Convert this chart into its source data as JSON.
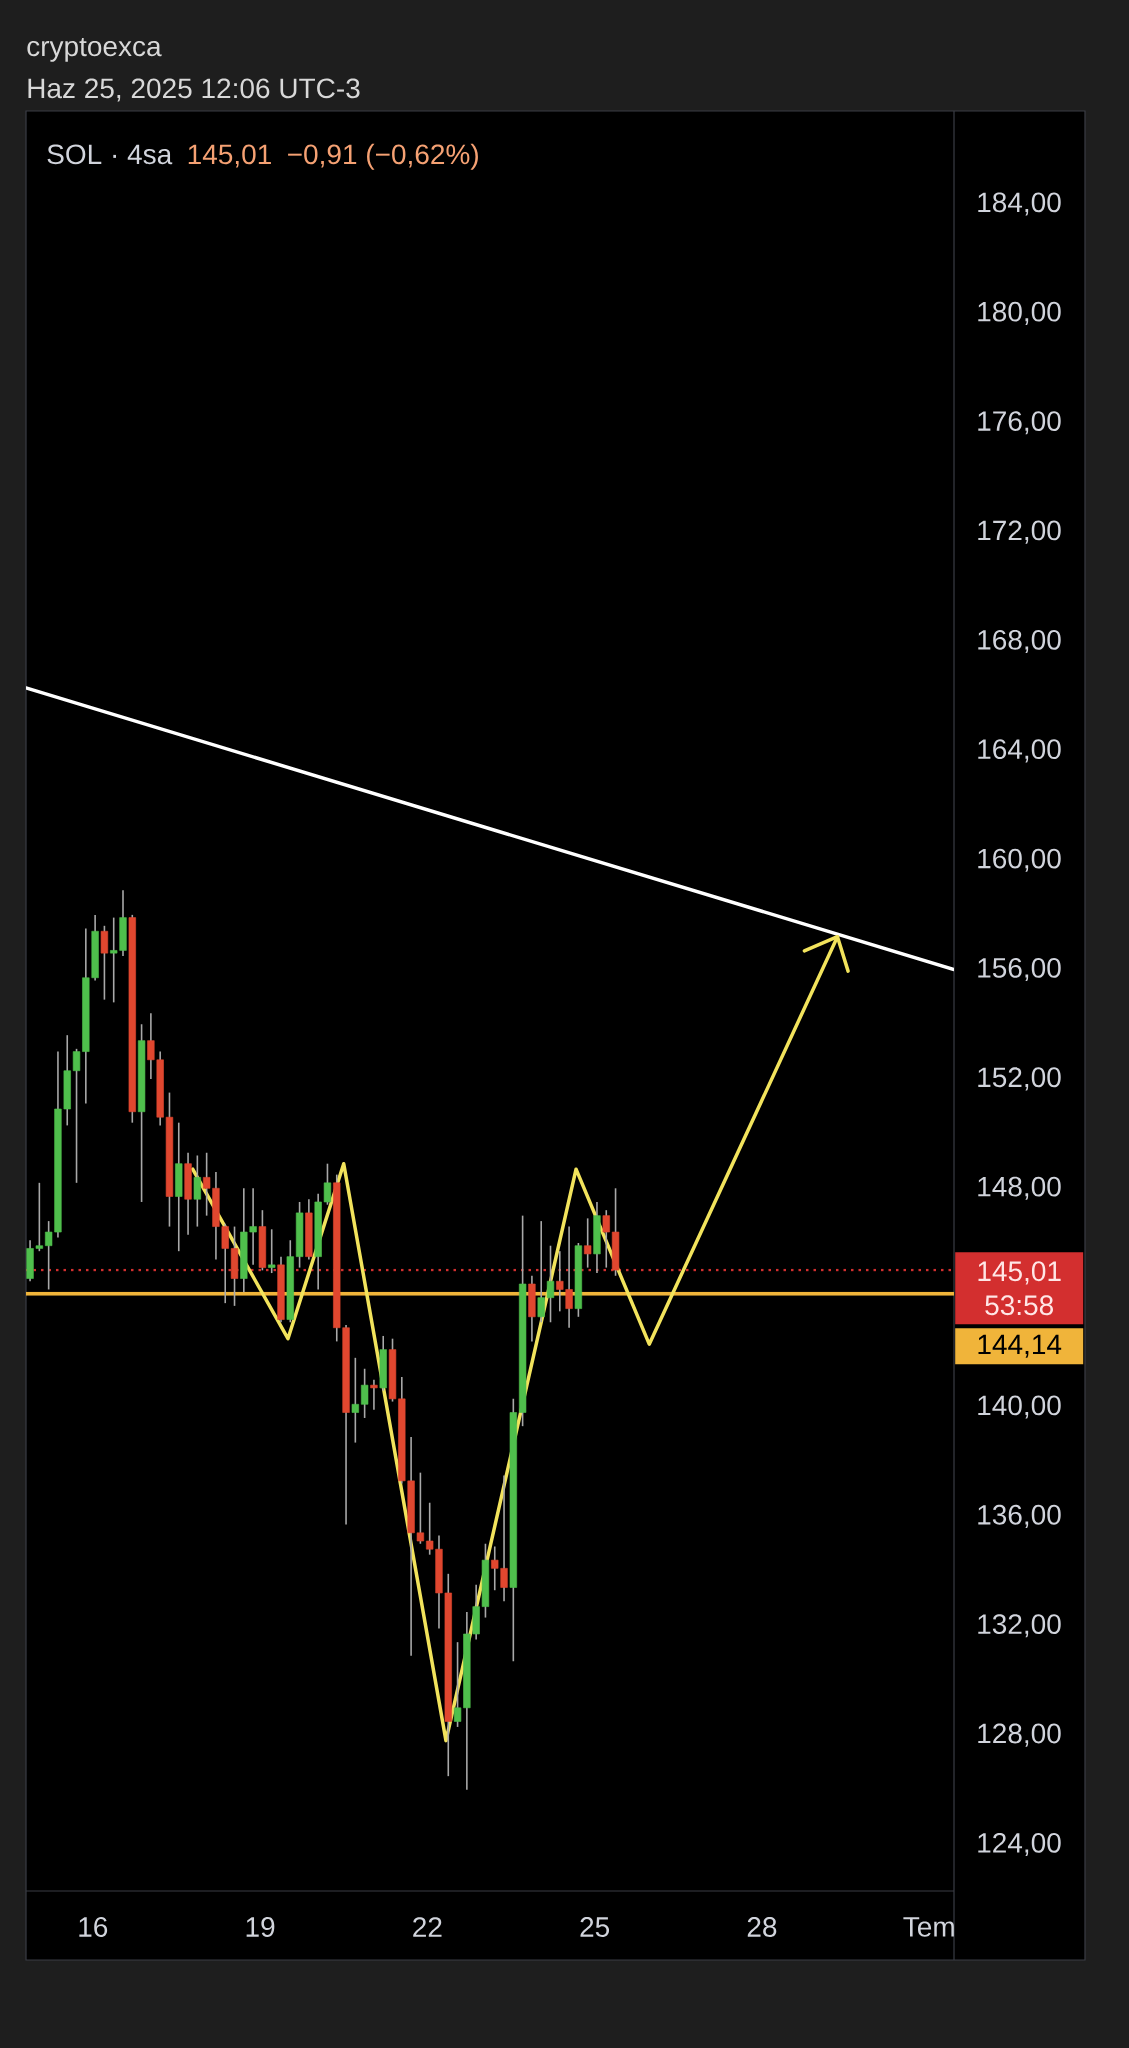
{
  "chart_data": {
    "type": "candlestick",
    "title": "cryptoexca",
    "subtitle": "Haz 25, 2025 12:06 UTC-3",
    "annotations": [
      "SOL · 4sa",
      "145,01",
      "−0,91 (−0,62%)",
      "53:58"
    ],
    "x": [
      "2025-06-14T21:00",
      "2025-06-15T01:00",
      "2025-06-15T05:00",
      "2025-06-15T09:00",
      "2025-06-15T13:00",
      "2025-06-15T17:00",
      "2025-06-15T21:00",
      "2025-06-16T01:00",
      "2025-06-16T05:00",
      "2025-06-16T09:00",
      "2025-06-16T13:00",
      "2025-06-16T17:00",
      "2025-06-16T21:00",
      "2025-06-17T01:00",
      "2025-06-17T05:00",
      "2025-06-17T09:00",
      "2025-06-17T13:00",
      "2025-06-17T17:00",
      "2025-06-17T21:00",
      "2025-06-18T01:00",
      "2025-06-18T05:00",
      "2025-06-18T09:00",
      "2025-06-18T13:00",
      "2025-06-18T17:00",
      "2025-06-18T21:00",
      "2025-06-19T01:00",
      "2025-06-19T05:00",
      "2025-06-19T09:00",
      "2025-06-19T13:00",
      "2025-06-19T17:00",
      "2025-06-19T21:00",
      "2025-06-20T01:00",
      "2025-06-20T05:00",
      "2025-06-20T09:00",
      "2025-06-20T13:00",
      "2025-06-20T17:00",
      "2025-06-20T21:00",
      "2025-06-21T01:00",
      "2025-06-21T05:00",
      "2025-06-21T09:00",
      "2025-06-21T13:00",
      "2025-06-21T17:00",
      "2025-06-21T21:00",
      "2025-06-22T01:00",
      "2025-06-22T05:00",
      "2025-06-22T09:00",
      "2025-06-22T13:00",
      "2025-06-22T17:00",
      "2025-06-22T21:00",
      "2025-06-23T01:00",
      "2025-06-23T05:00",
      "2025-06-23T09:00",
      "2025-06-23T13:00",
      "2025-06-23T17:00",
      "2025-06-23T21:00",
      "2025-06-24T01:00",
      "2025-06-24T05:00",
      "2025-06-24T09:00",
      "2025-06-24T13:00",
      "2025-06-24T17:00",
      "2025-06-24T21:00",
      "2025-06-25T01:00",
      "2025-06-25T05:00",
      "2025-06-25T09:00"
    ],
    "ohlc": [
      [
        144.7,
        146.1,
        144.6,
        145.8
      ],
      [
        145.8,
        148.2,
        145.7,
        145.9
      ],
      [
        145.9,
        146.8,
        144.3,
        146.4
      ],
      [
        146.4,
        153.0,
        146.2,
        150.9
      ],
      [
        150.9,
        153.6,
        150.3,
        152.3
      ],
      [
        152.3,
        153.1,
        148.2,
        153.0
      ],
      [
        153.0,
        157.5,
        151.1,
        155.7
      ],
      [
        155.7,
        158.0,
        155.6,
        157.4
      ],
      [
        157.4,
        157.6,
        154.9,
        156.6
      ],
      [
        156.6,
        157.9,
        154.8,
        156.7
      ],
      [
        156.7,
        158.9,
        156.5,
        157.9
      ],
      [
        157.9,
        158.0,
        150.4,
        150.8
      ],
      [
        150.8,
        154.0,
        147.5,
        153.4
      ],
      [
        153.4,
        154.4,
        152.0,
        152.7
      ],
      [
        152.7,
        153.0,
        150.3,
        150.6
      ],
      [
        150.6,
        151.5,
        146.6,
        147.7
      ],
      [
        147.7,
        150.4,
        145.7,
        148.9
      ],
      [
        148.9,
        149.3,
        146.3,
        147.6
      ],
      [
        147.6,
        149.2,
        146.6,
        148.4
      ],
      [
        148.4,
        149.3,
        147.0,
        148.0
      ],
      [
        148.0,
        148.6,
        145.4,
        146.6
      ],
      [
        146.6,
        146.7,
        143.8,
        145.8
      ],
      [
        145.8,
        146.6,
        143.7,
        144.7
      ],
      [
        144.7,
        148.0,
        144.2,
        146.4
      ],
      [
        146.4,
        148.0,
        145.2,
        146.6
      ],
      [
        146.6,
        147.2,
        145.0,
        145.1
      ],
      [
        145.1,
        146.5,
        144.9,
        145.2
      ],
      [
        145.2,
        145.5,
        143.1,
        143.2
      ],
      [
        143.2,
        146.1,
        143.1,
        145.5
      ],
      [
        145.5,
        147.5,
        145.1,
        147.1
      ],
      [
        147.1,
        147.6,
        145.4,
        145.5
      ],
      [
        145.5,
        147.8,
        144.3,
        147.5
      ],
      [
        147.5,
        148.9,
        147.4,
        148.2
      ],
      [
        148.2,
        148.5,
        142.4,
        142.9
      ],
      [
        142.9,
        143.0,
        135.7,
        139.8
      ],
      [
        139.8,
        141.8,
        138.7,
        140.1
      ],
      [
        140.1,
        141.4,
        139.6,
        140.8
      ],
      [
        140.8,
        141.0,
        139.9,
        140.7
      ],
      [
        140.7,
        142.6,
        140.6,
        142.1
      ],
      [
        142.1,
        142.5,
        140.2,
        140.3
      ],
      [
        140.3,
        141.1,
        137.2,
        137.3
      ],
      [
        137.3,
        138.9,
        130.9,
        135.4
      ],
      [
        135.4,
        137.6,
        135.0,
        135.1
      ],
      [
        135.1,
        136.5,
        134.6,
        134.8
      ],
      [
        134.8,
        135.3,
        131.9,
        133.2
      ],
      [
        133.2,
        133.9,
        126.5,
        128.5
      ],
      [
        128.5,
        131.4,
        128.3,
        129.0
      ],
      [
        129.0,
        132.5,
        126.0,
        131.7
      ],
      [
        131.7,
        133.5,
        131.5,
        132.7
      ],
      [
        132.7,
        135.0,
        132.3,
        134.4
      ],
      [
        134.4,
        134.9,
        133.3,
        134.1
      ],
      [
        134.1,
        137.5,
        132.9,
        133.4
      ],
      [
        133.4,
        140.3,
        130.7,
        139.8
      ],
      [
        139.8,
        147.0,
        139.3,
        144.5
      ],
      [
        144.5,
        144.8,
        142.4,
        143.3
      ],
      [
        143.3,
        146.8,
        143.1,
        144.0
      ],
      [
        144.0,
        145.9,
        143.1,
        144.6
      ],
      [
        144.6,
        145.7,
        143.5,
        144.3
      ],
      [
        144.3,
        146.6,
        142.9,
        143.6
      ],
      [
        143.6,
        146.0,
        143.3,
        145.9
      ],
      [
        145.9,
        146.9,
        145.1,
        145.6
      ],
      [
        145.6,
        147.5,
        144.9,
        147.0
      ],
      [
        147.0,
        147.2,
        145.1,
        146.4
      ],
      [
        146.4,
        148.0,
        144.8,
        145.01
      ]
    ],
    "colors": [
      "#4fbf4c",
      "#4fbf4c",
      "#4fbf4c",
      "#4fbf4c",
      "#4fbf4c",
      "#4fbf4c",
      "#4fbf4c",
      "#4fbf4c",
      "#e0472f",
      "#4fbf4c",
      "#4fbf4c",
      "#e0472f",
      "#4fbf4c",
      "#e0472f",
      "#e0472f",
      "#e0472f",
      "#4fbf4c",
      "#e0472f",
      "#4fbf4c",
      "#e0472f",
      "#e0472f",
      "#e0472f",
      "#e0472f",
      "#4fbf4c",
      "#4fbf4c",
      "#e0472f",
      "#4fbf4c",
      "#e0472f",
      "#4fbf4c",
      "#4fbf4c",
      "#e0472f",
      "#4fbf4c",
      "#4fbf4c",
      "#e0472f",
      "#e0472f",
      "#4fbf4c",
      "#4fbf4c",
      "#e0472f",
      "#4fbf4c",
      "#e0472f",
      "#e0472f",
      "#e0472f",
      "#e0472f",
      "#e0472f",
      "#e0472f",
      "#e0472f",
      "#4fbf4c",
      "#4fbf4c",
      "#4fbf4c",
      "#4fbf4c",
      "#e0472f",
      "#e0472f",
      "#4fbf4c",
      "#4fbf4c",
      "#e0472f",
      "#4fbf4c",
      "#4fbf4c",
      "#e0472f",
      "#e0472f",
      "#4fbf4c",
      "#e0472f",
      "#4fbf4c",
      "#e0472f",
      "#e0472f"
    ],
    "series": [
      {
        "type": "line",
        "x": [
          "2025-06-14T19:15",
          "2025-07-01T10:40"
        ],
        "values": [
          166.3,
          156.0
        ],
        "color": "#ffffff"
      },
      {
        "type": "line",
        "x": [
          "2025-06-17T19:00",
          "2025-06-19T12:00",
          "2025-06-20T12:00",
          "2025-06-22T08:00",
          "2025-06-24T16:00",
          "2025-06-25T23:30",
          "2025-06-29T08:30"
        ],
        "values": [
          148.7,
          142.5,
          148.9,
          127.8,
          148.7,
          142.3,
          157.2
        ],
        "color": "#f2e35c"
      }
    ],
    "ref_lines": [
      {
        "axis": "y",
        "value": 145.01,
        "label": "145,01",
        "color": "#d32f2f",
        "line_style": "dotted"
      },
      {
        "axis": "y",
        "value": 144.14,
        "label": "144,14",
        "color": "#f0b43a",
        "line_style": "solid"
      }
    ],
    "xlim": [
      "2025-06-14T19:15",
      "2025-07-01T10:40"
    ],
    "xticks": [
      {
        "value": "2025-06-16",
        "label": "16"
      },
      {
        "value": "2025-06-19",
        "label": "19"
      },
      {
        "value": "2025-06-22",
        "label": "22"
      },
      {
        "value": "2025-06-25",
        "label": "25"
      },
      {
        "value": "2025-06-28",
        "label": "28"
      },
      {
        "value": "2025-07-01",
        "label": "Tem"
      }
    ],
    "ylim": [
      122.3,
      187.4
    ],
    "yticks": [
      {
        "value": 124,
        "label": "124,00"
      },
      {
        "value": 128,
        "label": "128,00"
      },
      {
        "value": 132,
        "label": "132,00"
      },
      {
        "value": 136,
        "label": "136,00"
      },
      {
        "value": 140,
        "label": "140,00"
      },
      {
        "value": 144,
        "label": null
      },
      {
        "value": 148,
        "label": "148,00"
      },
      {
        "value": 152,
        "label": "152,00"
      },
      {
        "value": 156,
        "label": "156,00"
      },
      {
        "value": 160,
        "label": "160,00"
      },
      {
        "value": 164,
        "label": "164,00"
      },
      {
        "value": 168,
        "label": "168,00"
      },
      {
        "value": 172,
        "label": "172,00"
      },
      {
        "value": 176,
        "label": "176,00"
      },
      {
        "value": 180,
        "label": "180,00"
      },
      {
        "value": 184,
        "label": "184,00"
      }
    ],
    "grid": false
  }
}
